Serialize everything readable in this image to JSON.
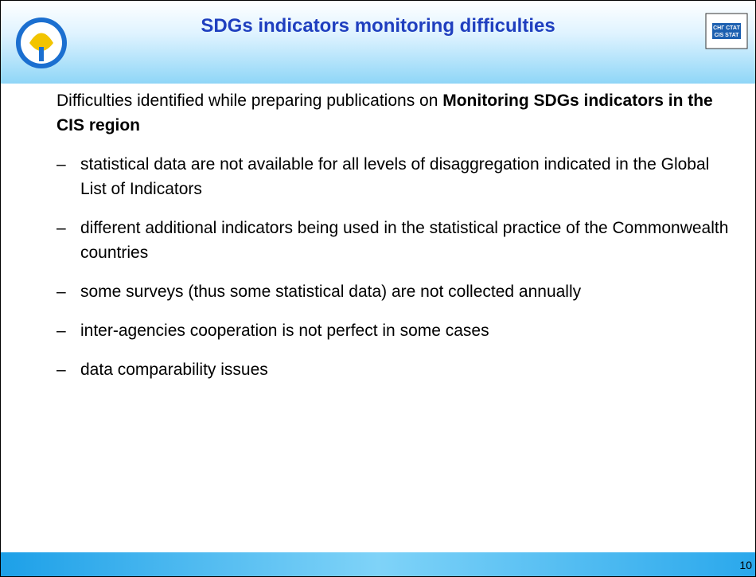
{
  "header": {
    "title": "SDGs indicators monitoring difficulties",
    "logo_right": [
      "СНГ СТАТ",
      "CIS STAT"
    ]
  },
  "intro": {
    "text": "Difficulties identified while preparing publications on ",
    "bold": "Monitoring SDGs indicators in the CIS region"
  },
  "bullets": [
    "statistical data are not available for all levels of disaggregation indicated in the Global List of Indicators",
    "different additional indicators being used in the statistical practice of the Commonwealth countries",
    "some surveys (thus some statistical data) are not collected annually",
    "inter-agencies cooperation is not perfect in some cases",
    "data comparability issues"
  ],
  "footer": {
    "page": "10"
  }
}
